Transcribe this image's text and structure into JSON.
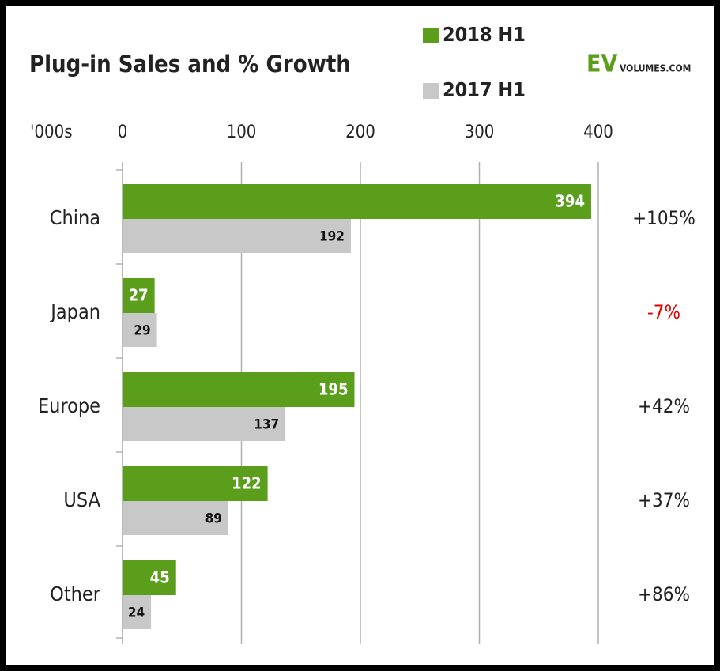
{
  "chart_data": {
    "type": "hbar",
    "title": "Plug-in Sales and % Growth",
    "logo": {
      "main": "EV",
      "sub": "VOLUMES.COM"
    },
    "unit_label": "'000s",
    "categories": [
      "China",
      "Japan",
      "Europe",
      "USA",
      "Other"
    ],
    "series": [
      {
        "name": "2018 H1",
        "color": "#5a9e1c",
        "values": [
          394,
          27,
          195,
          122,
          45
        ]
      },
      {
        "name": "2017 H1",
        "color": "#c8c8c8",
        "values": [
          192,
          29,
          137,
          89,
          24
        ]
      }
    ],
    "growth": {
      "values": [
        105,
        -7,
        42,
        37,
        86
      ],
      "value_labels": [
        "+105%",
        "-7%",
        "+42%",
        "+37%",
        "+86%"
      ],
      "color": "#222222",
      "negative_color": "#e00000"
    },
    "xlim": [
      0,
      400
    ],
    "xticks": [
      0,
      100,
      200,
      300,
      400
    ],
    "grid": true
  }
}
